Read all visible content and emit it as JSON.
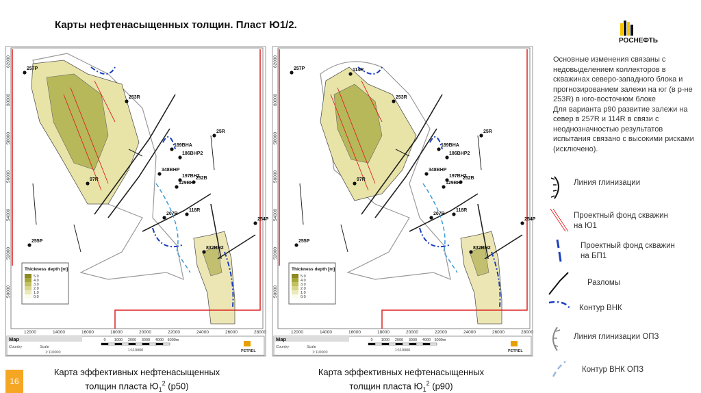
{
  "header": {
    "title": "Карты нефтенасыщенных толщин. Пласт Ю1/2.",
    "logo": "РОСНЕФТЬ"
  },
  "maps": [
    {
      "x_ticks": [
        "12000",
        "14000",
        "16000",
        "18000",
        "20000",
        "22000",
        "24000",
        "26000",
        "28000"
      ],
      "y_ticks": [
        "62000",
        "60000",
        "58000",
        "56000",
        "54000",
        "52000",
        "50000"
      ],
      "wells": [
        "257P",
        "253R",
        "97R",
        "348BHP",
        "197BH2",
        "129BH",
        "252B",
        "189BHA",
        "186BHP2",
        "25R",
        "118R",
        "254P",
        "255P",
        "207R",
        "832BH2"
      ],
      "legend_title": "Thickness depth [m]",
      "legend_values": [
        "5.0",
        "4.0",
        "3.0",
        "2.0",
        "1.0",
        "0.0"
      ],
      "panel_title": "Map",
      "country_label": "Country",
      "scale_label": "Scale",
      "scale": "1:110000",
      "scale_bar": [
        "0",
        "1000",
        "2000",
        "3000",
        "4000",
        "5000m"
      ],
      "scale_bar_ratio": "1:110000",
      "brand": "PETREL",
      "caption": {
        "line1": "Карта эффективных нефтенасыщенных",
        "line2": "толщин пласта Ю",
        "sub": "1",
        "sup": "2",
        "suffix": " (p50)"
      }
    },
    {
      "x_ticks": [
        "12000",
        "14000",
        "16000",
        "18000",
        "20000",
        "22000",
        "24000",
        "26000",
        "28000"
      ],
      "y_ticks": [
        "62000",
        "60000",
        "58000",
        "56000",
        "54000",
        "52000",
        "50000"
      ],
      "wells": [
        "257P",
        "253R",
        "97R",
        "348BHP",
        "197BH2",
        "129BH",
        "252B",
        "189BHA",
        "186BHP2",
        "25R",
        "118R",
        "254P",
        "255P",
        "207R",
        "832BH2",
        "114R"
      ],
      "legend_title": "Thickness depth [m]",
      "legend_values": [
        "5.0",
        "4.0",
        "3.0",
        "2.0",
        "1.0",
        "0.0"
      ],
      "panel_title": "Map",
      "country_label": "Country",
      "scale_label": "Scale",
      "scale": "1:110000",
      "scale_bar": [
        "0",
        "1000",
        "2000",
        "3000",
        "4000",
        "5000m"
      ],
      "scale_bar_ratio": "1:110000",
      "brand": "PETREL",
      "caption": {
        "line1": "Карта эффективных нефтенасыщенных",
        "line2": "толщин пласта Ю",
        "sub": "1",
        "sup": "2",
        "suffix": " (p90)"
      }
    }
  ],
  "notes": [
    "Основные изменения связаны с недовыделением коллекторов в скважинах северо-западного блока и прогнозированием залежи на юг (в р-не 253R) в юго-восточном блоке",
    "Для варианта p90 развитие залежи на север в 257R и 114R в связи с неоднозначностью результатов испытания связано с высокими рисками (исключено)."
  ],
  "legend": [
    "Линия глинизации",
    "Проектный фонд скважин на Ю1",
    "Проектный фонд скважин на БП1",
    "Разломы",
    "Контур ВНК",
    "Линия глинизации ОПЗ",
    "Контур ВНК ОПЗ"
  ],
  "page_number": "16"
}
